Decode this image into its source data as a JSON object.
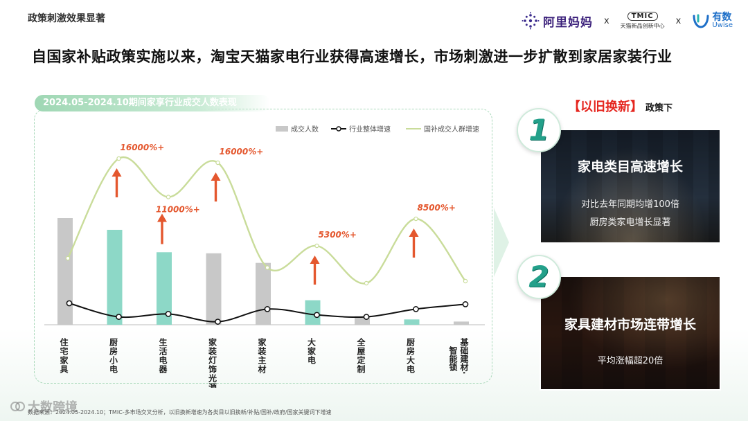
{
  "page": {
    "section_title": "政策刺激效果显著",
    "headline": "自国家补贴政策实施以来，淘宝天猫家电行业获得高速增长，市场刺激进一步扩散到家居家装行业",
    "footer": "数据来源：2024.05-2024.10；TMIC-多市场交叉分析，以旧换新增速为各类目以旧换新/补贴/国补/政府/国家关键词下增速",
    "watermark": "大数跨境"
  },
  "logos": {
    "alimama": "阿里妈妈",
    "sep1": "x",
    "tmic": "TMIC",
    "tmic_sub": "天猫新品创新中心",
    "sep2": "x",
    "uwise_cn": "有数",
    "uwise_en": "Uwise"
  },
  "chart_panel": {
    "tag": "2024.05-2024.10期间家享行业成交人数表现"
  },
  "chart_data": {
    "type": "bar",
    "categories": [
      "住宅家具",
      "厨房小电",
      "生活电器",
      "家装灯饰光源",
      "家装主材",
      "大家电",
      "全屋定制",
      "厨房大电",
      "基础建材·智能锁"
    ],
    "category_label_lines": [
      [
        "住宅",
        "家具"
      ],
      [
        "厨房",
        "小电"
      ],
      [
        "生活",
        "电器"
      ],
      [
        "家装",
        "灯饰",
        "光源"
      ],
      [
        "家装",
        "主材"
      ],
      [
        "大家",
        "电"
      ],
      [
        "全屋",
        "定制"
      ],
      [
        "厨房",
        "大电"
      ],
      [
        "基础",
        "建材·",
        "智能",
        "锁"
      ]
    ],
    "legend": [
      "成交人数",
      "行业整体增速",
      "国补成交人群增速"
    ],
    "series": [
      {
        "name": "成交人数",
        "kind": "bar",
        "values": [
          100,
          89,
          68,
          67,
          58,
          23,
          8,
          5,
          3
        ],
        "colors": [
          "#c8c8c8",
          "#8dd8c7",
          "#8dd8c7",
          "#c8c8c8",
          "#c8c8c8",
          "#8dd8c7",
          "#c8c8c8",
          "#8dd8c7",
          "#c8c8c8"
        ]
      },
      {
        "name": "行业整体增速",
        "kind": "line",
        "values": [
          20,
          6,
          9,
          1,
          14,
          8,
          6,
          14,
          19
        ],
        "color": "#111111"
      },
      {
        "name": "国补成交人群增速",
        "kind": "line",
        "values": [
          64,
          160,
          123,
          156,
          55,
          76,
          40,
          102,
          42
        ],
        "color": "#c9dc9a"
      }
    ],
    "annotations": [
      {
        "text": "16000%+",
        "category": 1
      },
      {
        "text": "11000%+",
        "category": 2
      },
      {
        "text": "16000%+",
        "category": 3
      },
      {
        "text": "5300%+",
        "category": 5
      },
      {
        "text": "8500%+",
        "category": 7
      }
    ],
    "colors": {
      "bar_gray": "#c8c8c8",
      "bar_teal": "#8dd8c7",
      "arrow": "#e4572e",
      "annotation": "#e4572e"
    },
    "grid": false,
    "legend_position": "top-right"
  },
  "policy": {
    "heading_highlight": "【以旧换新】",
    "heading_suffix": "政策下",
    "cards": [
      {
        "badge": "1",
        "title": "家电类目高速增长",
        "lines": [
          "对比去年同期均增100倍",
          "厨房类家电增长显著"
        ]
      },
      {
        "badge": "2",
        "title": "家具建材市场连带增长",
        "lines": [
          "平均涨幅超20倍"
        ]
      }
    ]
  }
}
